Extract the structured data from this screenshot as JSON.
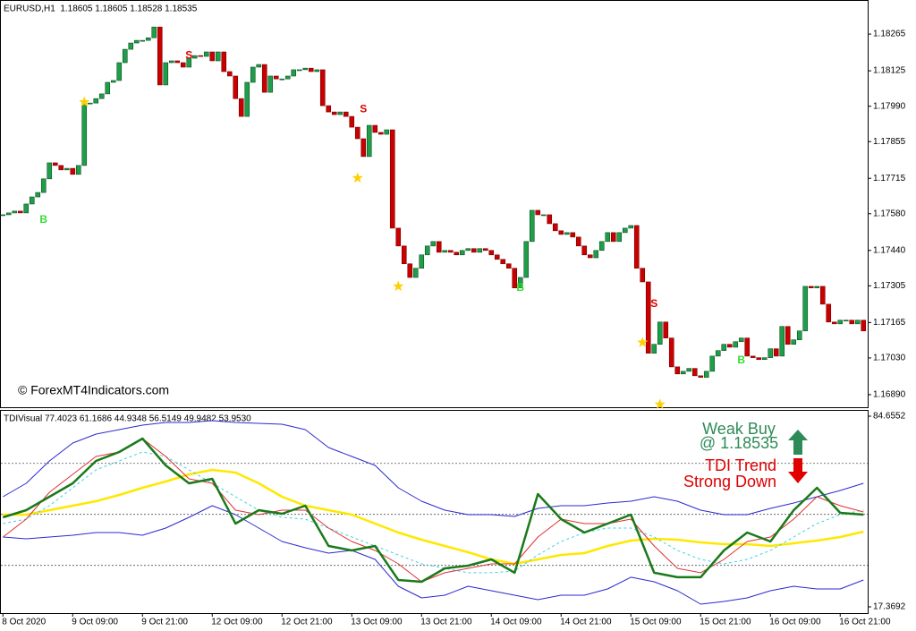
{
  "chart_data": [
    {
      "type": "candlestick",
      "title": "EURUSD,H1  1.18605 1.18605 1.18528 1.18535",
      "watermark": "© ForexMT4Indicators.com",
      "categories": [
        "8 Oct 2020",
        null,
        null,
        null,
        null,
        null,
        null,
        null,
        null,
        null,
        null,
        null,
        "9 Oct 09:00",
        null,
        null,
        null,
        null,
        null,
        null,
        null,
        null,
        null,
        null,
        null,
        "9 Oct 21:00",
        null,
        null,
        null,
        null,
        null,
        null,
        null,
        null,
        null,
        null,
        null,
        "12 Oct 09:00",
        null,
        null,
        null,
        null,
        null,
        null,
        null,
        null,
        null,
        null,
        null,
        "12 Oct 21:00",
        null,
        null,
        null,
        null,
        null,
        null,
        null,
        null,
        null,
        null,
        null,
        "13 Oct 09:00",
        null,
        null,
        null,
        null,
        null,
        null,
        null,
        null,
        null,
        null,
        null,
        "13 Oct 21:00",
        null,
        null,
        null,
        null,
        null,
        null,
        null,
        null,
        null,
        null,
        null,
        "14 Oct 09:00",
        null,
        null,
        null,
        null,
        null,
        null,
        null,
        null,
        null,
        null,
        null,
        "14 Oct 21:00",
        null,
        null,
        null,
        null,
        null,
        null,
        null,
        null,
        null,
        null,
        null,
        "15 Oct 09:00",
        null,
        null,
        null,
        null,
        null,
        null,
        null,
        null,
        null,
        null,
        null,
        "15 Oct 21:00",
        null,
        null,
        null,
        null,
        null,
        null,
        null,
        null,
        null,
        null,
        null,
        "16 Oct 09:00",
        null,
        null,
        null,
        null,
        null,
        null,
        null,
        null,
        null,
        null,
        null,
        "16 Oct 21:00",
        null,
        null,
        null,
        null
      ],
      "close": [
        1.17576,
        1.17583,
        1.1759,
        1.17583,
        1.17617,
        1.17644,
        1.17661,
        1.17713,
        1.17774,
        1.17764,
        1.17747,
        1.17753,
        1.1773,
        1.17764,
        1.18002,
        1.18002,
        1.18019,
        1.18037,
        1.18081,
        1.18088,
        1.18156,
        1.18207,
        1.18231,
        1.18241,
        1.18241,
        1.18251,
        1.18292,
        1.18071,
        1.18156,
        1.18163,
        1.18156,
        1.18139,
        1.18173,
        1.18183,
        1.1818,
        1.18197,
        1.18163,
        1.18197,
        1.18122,
        1.18105,
        1.18019,
        1.17951,
        1.18081,
        1.18139,
        1.18149,
        1.18043,
        1.18105,
        1.18094,
        1.18094,
        1.18105,
        1.18129,
        1.18129,
        1.18135,
        1.18122,
        1.18129,
        1.17992,
        1.17968,
        1.17958,
        1.17968,
        1.17951,
        1.1791,
        1.17866,
        1.17798,
        1.17917,
        1.1789,
        1.17883,
        1.179,
        1.17525,
        1.17457,
        1.17389,
        1.17337,
        1.17372,
        1.17423,
        1.17457,
        1.17474,
        1.17433,
        1.1744,
        1.17433,
        1.17423,
        1.1744,
        1.17447,
        1.17433,
        1.17447,
        1.1744,
        1.17423,
        1.17406,
        1.17389,
        1.17372,
        1.17297,
        1.17337,
        1.17474,
        1.17593,
        1.17576,
        1.17576,
        1.17542,
        1.17515,
        1.17501,
        1.17508,
        1.17491,
        1.17457,
        1.17423,
        1.17412,
        1.1744,
        1.17474,
        1.17508,
        1.17474,
        1.17508,
        1.17525,
        1.17535,
        1.17372,
        1.1732,
        1.17048,
        1.17082,
        1.17167,
        1.17106,
        1.16996,
        1.16969,
        1.16979,
        1.1699,
        1.16962,
        1.16956,
        1.16979,
        1.17037,
        1.17058,
        1.17082,
        1.17071,
        1.17092,
        1.17106,
        1.17037,
        1.17031,
        1.17024,
        1.17031,
        1.17065,
        1.17037,
        1.1715,
        1.17082,
        1.17099,
        1.17133,
        1.17303,
        1.17297,
        1.17303,
        1.17235,
        1.17167,
        1.1716,
        1.17174,
        1.17174,
        1.1716,
        1.17174,
        1.17133
      ],
      "up_color": "#1f9e4a",
      "down_color": "#c80000",
      "ylim": [
        1.16842,
        1.18395
      ],
      "yticks": [
        1.18265,
        1.18125,
        {
          "value": 1.1799,
          "label": "1.17990"
        },
        1.17855,
        1.17715,
        {
          "value": 1.1758,
          "label": "1.17580"
        },
        {
          "value": 1.1744,
          "label": "1.17440"
        },
        1.17305,
        1.17165,
        {
          "value": 1.1703,
          "label": "1.17030"
        },
        {
          "value": 1.1689,
          "label": "1.16890"
        }
      ],
      "signals": [
        {
          "label": "B",
          "index": 7,
          "price": 1.17556,
          "color": "#33dd33"
        },
        {
          "label": "S",
          "index": 32,
          "price": 1.18183,
          "color": "#e00000"
        },
        {
          "label": "S",
          "index": 62,
          "price": 1.17978,
          "color": "#e00000"
        },
        {
          "label": "B",
          "index": 89,
          "price": 1.17297,
          "color": "#33dd33"
        },
        {
          "label": "S",
          "index": 112,
          "price": 1.17235,
          "color": "#e00000"
        },
        {
          "label": "B",
          "index": 127,
          "price": 1.1702,
          "color": "#33dd33"
        }
      ],
      "stars": [
        {
          "index": 14,
          "price": 1.18006
        },
        {
          "index": 61,
          "price": 1.17716
        },
        {
          "index": 68,
          "price": 1.17303
        },
        {
          "index": 110,
          "price": 1.17089
        },
        {
          "index": 113,
          "price": 1.16853
        }
      ],
      "star_color": "#ffd000"
    },
    {
      "type": "line",
      "title": "TDIVisual 77.4023 61.1686 44.9348 56.5149 49.9482 53.9530",
      "annotations": [
        "Weak Buy",
        "@ 1.18535",
        "TDI Trend",
        "Strong Down"
      ],
      "x": [
        0,
        4,
        8,
        12,
        16,
        20,
        24,
        28,
        32,
        36,
        40,
        44,
        48,
        52,
        56,
        60,
        64,
        68,
        72,
        76,
        80,
        84,
        88,
        92,
        96,
        100,
        104,
        108,
        112,
        116,
        120,
        124,
        128,
        132,
        136,
        140,
        144,
        148
      ],
      "ylim": [
        17.3692,
        84.6552
      ],
      "yticks": [
        84.6552,
        17.3692
      ],
      "levels": [
        32,
        50,
        68
      ],
      "series": [
        {
          "color": "#2a2ad0",
          "width": 1,
          "values": [
            56.23,
            60.97,
            68.87,
            75.18,
            78.34,
            79.92,
            81.5,
            82.45,
            82.45,
            83.08,
            82.45,
            82.13,
            81.81,
            79.92,
            73.6,
            70.44,
            67.28,
            59.39,
            54.65,
            51.49,
            49.91,
            49.91,
            49.28,
            52.12,
            53.07,
            53.07,
            54.02,
            54.65,
            56.23,
            54.65,
            51.49,
            49.91,
            49.91,
            52.12,
            54.02,
            56.23,
            58.44,
            60.97
          ]
        },
        {
          "color": "#2a2ad0",
          "width": 1,
          "values": [
            42.02,
            41.38,
            42.02,
            42.65,
            43.6,
            43.6,
            42.65,
            45.17,
            48.96,
            53.07,
            49.91,
            45.17,
            40.44,
            38.23,
            36.33,
            37.28,
            34.12,
            24.64,
            20.54,
            21.49,
            24.64,
            23.06,
            21.49,
            19.91,
            21.49,
            21.49,
            23.7,
            27.81,
            26.23,
            23.06,
            18.33,
            19.28,
            20.54,
            23.06,
            24.64,
            23.7,
            23.7,
            26.86
          ]
        },
        {
          "color": "#ffe800",
          "width": 2.5,
          "values": [
            49.91,
            49.91,
            51.49,
            53.07,
            54.65,
            56.86,
            59.39,
            61.6,
            64.12,
            65.7,
            64.76,
            60.97,
            56.23,
            53.07,
            51.49,
            49.91,
            46.75,
            43.6,
            41.07,
            38.86,
            36.65,
            34.12,
            32.54,
            34.12,
            35.7,
            36.33,
            38.86,
            40.75,
            41.38,
            41.07,
            40.12,
            39.49,
            39.49,
            38.86,
            39.81,
            40.75,
            42.02,
            43.91
          ]
        },
        {
          "color": "#40d0e0",
          "width": 1,
          "dash": true,
          "values": [
            46.75,
            48.34,
            53.07,
            59.39,
            65.7,
            68.87,
            72.03,
            70.44,
            65.7,
            60.97,
            56.23,
            51.49,
            48.96,
            48.34,
            45.17,
            42.02,
            38.86,
            35.7,
            32.54,
            30.96,
            29.39,
            29.39,
            30.01,
            35.7,
            40.44,
            43.6,
            45.17,
            45.17,
            42.02,
            37.28,
            34.12,
            32.54,
            34.12,
            37.28,
            42.02,
            46.75,
            49.91,
            51.49
          ]
        },
        {
          "color": "#e03030",
          "width": 1,
          "values": [
            42.02,
            48.34,
            57.81,
            64.12,
            70.44,
            72.03,
            76.76,
            70.44,
            62.55,
            60.97,
            51.49,
            49.91,
            51.49,
            51.49,
            45.17,
            40.44,
            37.28,
            32.54,
            26.23,
            29.39,
            30.96,
            32.54,
            32.54,
            42.02,
            48.34,
            46.75,
            46.75,
            48.34,
            38.86,
            30.96,
            29.39,
            34.12,
            40.44,
            42.02,
            48.34,
            56.23,
            53.07,
            50.86
          ]
        },
        {
          "color": "#1a7a1a",
          "width": 2.5,
          "values": [
            48.96,
            51.49,
            56.23,
            60.97,
            68.87,
            72.03,
            76.76,
            67.28,
            60.97,
            62.55,
            46.75,
            51.49,
            50.23,
            53.07,
            38.86,
            37.28,
            38.86,
            26.86,
            26.23,
            30.96,
            31.91,
            34.12,
            29.39,
            57.18,
            48.34,
            43.6,
            46.75,
            49.91,
            29.39,
            27.81,
            27.81,
            37.28,
            43.6,
            40.44,
            51.49,
            59.39,
            50.55,
            49.91
          ]
        }
      ]
    }
  ]
}
